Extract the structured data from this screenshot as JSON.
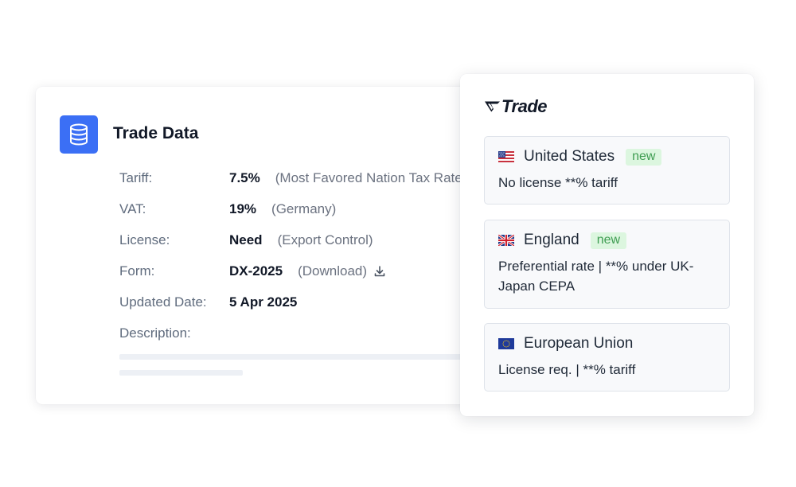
{
  "trade_card": {
    "title": "Trade Data",
    "icon": "database-icon",
    "rows": [
      {
        "label": "Tariff:",
        "value": "7.5%",
        "note": "(Most Favored Nation Tax Rate)"
      },
      {
        "label": "VAT:",
        "value": "19%",
        "note": "(Germany)"
      },
      {
        "label": "License:",
        "value": "Need",
        "note": "(Export Control)"
      },
      {
        "label": "Form:",
        "value": "DX-2025",
        "note": "(Download)"
      },
      {
        "label": "Updated Date:",
        "value": "5 Apr 2025",
        "note": ""
      },
      {
        "label": "Description:",
        "value": "",
        "note": ""
      }
    ]
  },
  "panel": {
    "logo_text": "Trade",
    "countries": [
      {
        "name": "United States",
        "badge": "new",
        "flag": "us-flag",
        "description": "No license **% tariff"
      },
      {
        "name": "England",
        "badge": "new",
        "flag": "uk-flag",
        "description": "Preferential rate | **% under UK-Japan CEPA"
      },
      {
        "name": "European Union",
        "badge": "",
        "flag": "eu-flag",
        "description": "License req. | **% tariff"
      }
    ]
  },
  "colors": {
    "accent": "#3b6ff5",
    "badge_bg": "#dcf6df",
    "badge_text": "#3f9d52",
    "label_gray": "#5f6b7d"
  }
}
